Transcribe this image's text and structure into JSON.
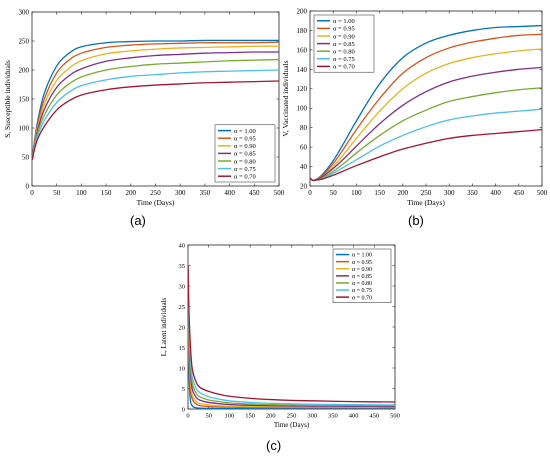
{
  "panel_labels": {
    "a": "(a)",
    "b": "(b)",
    "c": "(c)"
  },
  "chart_data": [
    {
      "type": "line",
      "title": "",
      "xlabel": "Time (Days)",
      "ylabel": "S, Susceptible individuals",
      "xlim": [
        0,
        500
      ],
      "ylim": [
        0,
        300
      ],
      "xticks": [
        0,
        50,
        100,
        150,
        200,
        250,
        300,
        350,
        400,
        450,
        500
      ],
      "yticks": [
        0,
        50,
        100,
        150,
        200,
        250,
        300
      ],
      "legend_position": "bottom-right",
      "grid": false,
      "x": [
        0,
        10,
        25,
        50,
        75,
        100,
        150,
        200,
        250,
        300,
        350,
        400,
        450,
        500
      ],
      "series": [
        {
          "name": "α = 1.00",
          "color": "#0072BD",
          "values": [
            45,
            105,
            160,
            207,
            229,
            240,
            247,
            249,
            250,
            250,
            251,
            251,
            251,
            251
          ]
        },
        {
          "name": "α = 0.95",
          "color": "#D95319",
          "values": [
            45,
            100,
            150,
            195,
            217,
            229,
            239,
            243,
            245,
            246,
            247,
            247,
            247,
            248
          ]
        },
        {
          "name": "α = 0.90",
          "color": "#EDB120",
          "values": [
            45,
            96,
            141,
            182,
            203,
            216,
            228,
            233,
            236,
            238,
            239,
            240,
            241,
            241
          ]
        },
        {
          "name": "α = 0.85",
          "color": "#7E2F8E",
          "values": [
            45,
            92,
            132,
            170,
            190,
            202,
            215,
            221,
            225,
            227,
            229,
            230,
            231,
            231
          ]
        },
        {
          "name": "α = 0.80",
          "color": "#77AC30",
          "values": [
            45,
            88,
            122,
            157,
            176,
            188,
            200,
            206,
            210,
            212,
            214,
            216,
            217,
            218
          ]
        },
        {
          "name": "α = 0.75",
          "color": "#4DBEEE",
          "values": [
            45,
            83,
            113,
            144,
            162,
            173,
            183,
            189,
            192,
            195,
            197,
            198,
            199,
            200
          ]
        },
        {
          "name": "α = 0.70",
          "color": "#A2142F",
          "values": [
            45,
            78,
            103,
            131,
            147,
            157,
            166,
            171,
            174,
            176,
            178,
            179,
            180,
            181
          ]
        }
      ]
    },
    {
      "type": "line",
      "title": "",
      "xlabel": "Time (Days)",
      "ylabel": "V, Vaccinated individuals",
      "xlim": [
        0,
        500
      ],
      "ylim": [
        20,
        200
      ],
      "xticks": [
        0,
        50,
        100,
        150,
        200,
        250,
        300,
        350,
        400,
        450,
        500
      ],
      "yticks": [
        20,
        40,
        60,
        80,
        100,
        120,
        140,
        160,
        180,
        200
      ],
      "legend_position": "top-left",
      "grid": false,
      "x": [
        0,
        5,
        10,
        25,
        50,
        75,
        100,
        150,
        200,
        250,
        300,
        350,
        400,
        450,
        500
      ],
      "series": [
        {
          "name": "α = 1.00",
          "color": "#0072BD",
          "values": [
            28,
            26,
            26,
            31,
            46,
            66,
            87,
            125,
            152,
            167,
            175,
            180,
            183,
            184,
            185
          ]
        },
        {
          "name": "α = 0.95",
          "color": "#D95319",
          "values": [
            28,
            26,
            26,
            30,
            43,
            60,
            78,
            110,
            136,
            152,
            162,
            168,
            172,
            175,
            176
          ]
        },
        {
          "name": "α = 0.90",
          "color": "#EDB120",
          "values": [
            28,
            26,
            26,
            29,
            40,
            54,
            69,
            97,
            120,
            136,
            146,
            152,
            156,
            159,
            161
          ]
        },
        {
          "name": "α = 0.85",
          "color": "#7E2F8E",
          "values": [
            28,
            26,
            26,
            29,
            38,
            49,
            61,
            84,
            103,
            117,
            127,
            133,
            137,
            140,
            142
          ]
        },
        {
          "name": "α = 0.80",
          "color": "#77AC30",
          "values": [
            28,
            26,
            26,
            28,
            35,
            44,
            54,
            72,
            87,
            98,
            107,
            112,
            116,
            119,
            121
          ]
        },
        {
          "name": "α = 0.75",
          "color": "#4DBEEE",
          "values": [
            28,
            26,
            26,
            27,
            33,
            40,
            47,
            61,
            72,
            81,
            88,
            92,
            95,
            97,
            99
          ]
        },
        {
          "name": "α = 0.70",
          "color": "#A2142F",
          "values": [
            28,
            26,
            26,
            27,
            31,
            36,
            41,
            50,
            58,
            64,
            69,
            72,
            74,
            76,
            78
          ]
        }
      ]
    },
    {
      "type": "line",
      "title": "",
      "xlabel": "Time (Days)",
      "ylabel": "L, Latent individuals",
      "xlim": [
        0,
        500
      ],
      "ylim": [
        0,
        40
      ],
      "xticks": [
        0,
        50,
        100,
        150,
        200,
        250,
        300,
        350,
        400,
        450,
        500
      ],
      "yticks": [
        0,
        5,
        10,
        15,
        20,
        25,
        30,
        35,
        40
      ],
      "legend_position": "top-right",
      "grid": false,
      "x": [
        0,
        2,
        5,
        10,
        20,
        30,
        50,
        75,
        100,
        150,
        200,
        250,
        300,
        400,
        500
      ],
      "series": [
        {
          "name": "α = 1.00",
          "color": "#0072BD",
          "values": [
            35,
            12,
            3,
            0.8,
            0.3,
            0.2,
            0.15,
            0.12,
            0.1,
            0.1,
            0.1,
            0.1,
            0.1,
            0.1,
            0.1
          ]
        },
        {
          "name": "α = 0.95",
          "color": "#D95319",
          "values": [
            35,
            15,
            6,
            2.5,
            1.2,
            0.8,
            0.6,
            0.5,
            0.45,
            0.4,
            0.35,
            0.35,
            0.3,
            0.3,
            0.3
          ]
        },
        {
          "name": "α = 0.90",
          "color": "#EDB120",
          "values": [
            35,
            17,
            8,
            3.5,
            1.8,
            1.3,
            1.0,
            0.8,
            0.7,
            0.6,
            0.55,
            0.5,
            0.5,
            0.45,
            0.45
          ]
        },
        {
          "name": "α = 0.85",
          "color": "#7E2F8E",
          "values": [
            35,
            19,
            10,
            5,
            2.8,
            2.1,
            1.6,
            1.3,
            1.1,
            0.9,
            0.8,
            0.75,
            0.7,
            0.65,
            0.6
          ]
        },
        {
          "name": "α = 0.80",
          "color": "#77AC30",
          "values": [
            35,
            21,
            12,
            6.5,
            3.8,
            2.9,
            2.2,
            1.8,
            1.5,
            1.2,
            1.05,
            0.95,
            0.9,
            0.85,
            0.8
          ]
        },
        {
          "name": "α = 0.75",
          "color": "#4DBEEE",
          "values": [
            35,
            23,
            14,
            8,
            5,
            3.9,
            3.0,
            2.4,
            2.0,
            1.6,
            1.4,
            1.25,
            1.15,
            1.05,
            1.0
          ]
        },
        {
          "name": "α = 0.70",
          "color": "#A2142F",
          "values": [
            35,
            25,
            17,
            10,
            6.5,
            5.2,
            4.3,
            3.6,
            3.1,
            2.6,
            2.3,
            2.1,
            2.0,
            1.8,
            1.7
          ]
        }
      ]
    }
  ]
}
